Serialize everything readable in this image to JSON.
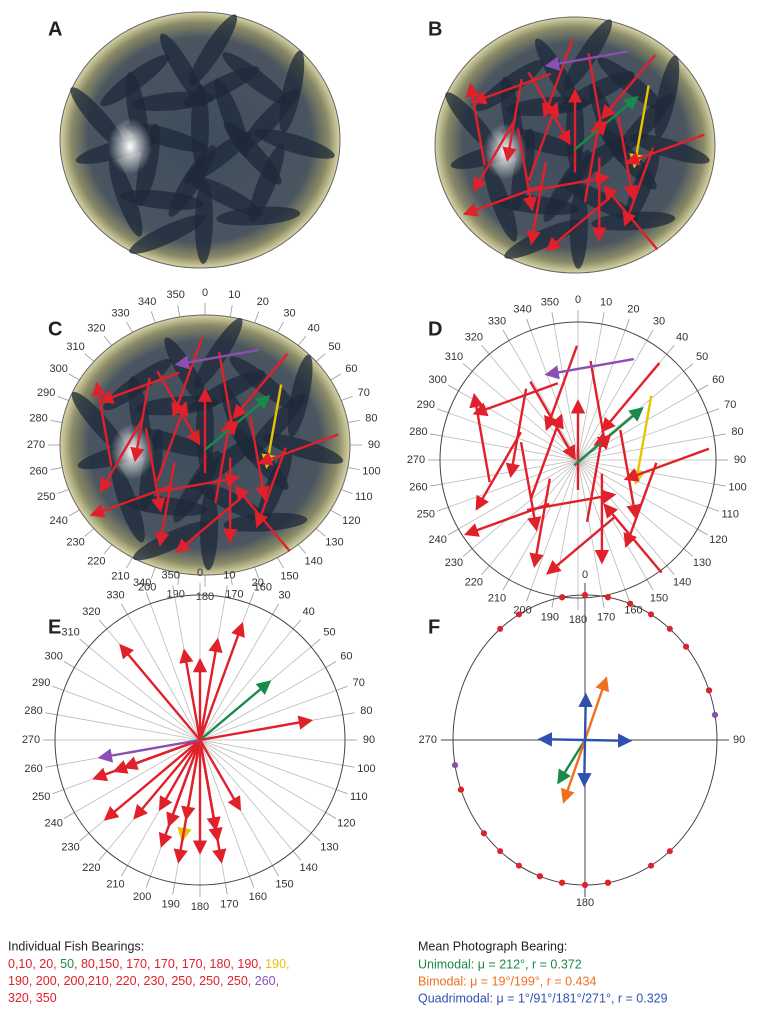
{
  "panel_labels": [
    "A",
    "B",
    "C",
    "D",
    "E",
    "F"
  ],
  "angle_labels": [
    "0",
    "10",
    "20",
    "30",
    "40",
    "50",
    "60",
    "70",
    "80",
    "90",
    "100",
    "110",
    "120",
    "130",
    "140",
    "150",
    "160",
    "170",
    "180",
    "190",
    "200",
    "210",
    "220",
    "230",
    "240",
    "250",
    "260",
    "270",
    "280",
    "290",
    "300",
    "310",
    "320",
    "330",
    "340",
    "350"
  ],
  "panel_f_axis_labels": [
    "0",
    "90",
    "180",
    "270"
  ],
  "fish_bearings": {
    "title": "Individual Fish Bearings:",
    "lines": [
      [
        {
          "text": "0,10, 20, ",
          "color": "#e0202a"
        },
        {
          "text": "50",
          "color": "#1a8a4a"
        },
        {
          "text": ", 80,150, 170, 170, 170, 180, 190, ",
          "color": "#e0202a"
        },
        {
          "text": "190,",
          "color": "#e8c400"
        }
      ],
      [
        {
          "text": "190, 200, 200,210, 220, 230, 250, 250, 250, ",
          "color": "#e0202a"
        },
        {
          "text": "260",
          "color": "#8a4fb0"
        },
        {
          "text": ",",
          "color": "#e0202a"
        }
      ],
      [
        {
          "text": "320, 350",
          "color": "#e0202a"
        }
      ]
    ],
    "bearings": [
      0,
      10,
      20,
      50,
      80,
      150,
      170,
      170,
      170,
      180,
      190,
      190,
      190,
      200,
      200,
      210,
      220,
      230,
      250,
      250,
      250,
      260,
      320,
      350
    ],
    "colors": [
      "#e0202a",
      "#e0202a",
      "#e0202a",
      "#1a8a4a",
      "#e0202a",
      "#e0202a",
      "#e0202a",
      "#e0202a",
      "#e0202a",
      "#e0202a",
      "#e0202a",
      "#e8c400",
      "#e0202a",
      "#e0202a",
      "#e0202a",
      "#e0202a",
      "#e0202a",
      "#e0202a",
      "#e0202a",
      "#e0202a",
      "#e0202a",
      "#8a4fb0",
      "#e0202a",
      "#e0202a"
    ]
  },
  "mean_bearing": {
    "title": "Mean Photograph Bearing:",
    "lines": [
      {
        "text": "Unimodal: μ = 212°, r = 0.372",
        "color": "#1a8a4a"
      },
      {
        "text": "Bimodal: μ = 19°/199°, r = 0.434",
        "color": "#f07020"
      },
      {
        "text": "Quadrimodal: μ = 1°/91°/181°/271°, r = 0.329",
        "color": "#3050b0"
      }
    ]
  }
}
